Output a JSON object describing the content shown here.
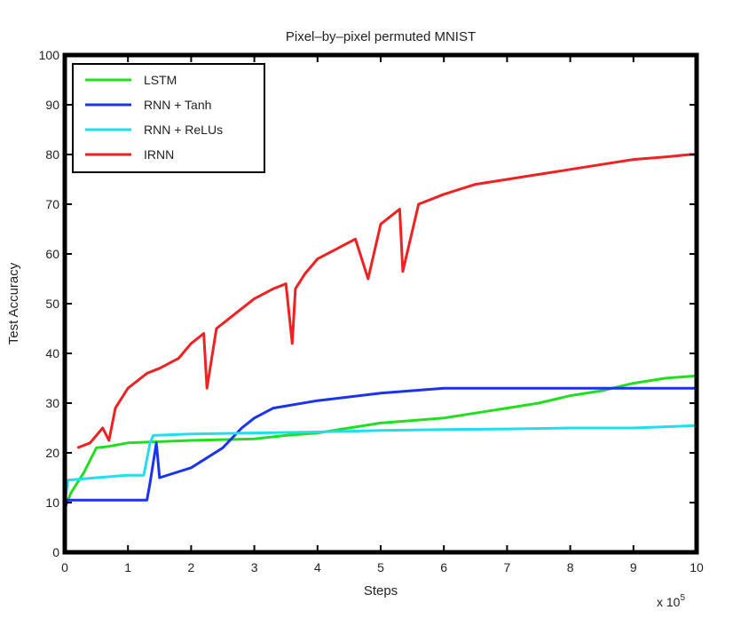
{
  "chart_data": {
    "type": "line",
    "title": "Pixel–by–pixel permuted MNIST",
    "xlabel": "Steps",
    "ylabel": "Test Accuracy",
    "x_multiplier": "x 10",
    "x_multiplier_exp": "5",
    "xlim": [
      0,
      10
    ],
    "ylim": [
      0,
      100
    ],
    "xticks": [
      "0",
      "1",
      "2",
      "3",
      "4",
      "5",
      "6",
      "7",
      "8",
      "9",
      "10"
    ],
    "yticks": [
      "0",
      "10",
      "20",
      "30",
      "40",
      "50",
      "60",
      "70",
      "80",
      "90",
      "100"
    ],
    "grid": false,
    "legend_position": "top-left",
    "series": [
      {
        "name": "LSTM",
        "color": "#22dd22",
        "x": [
          0,
          0.1,
          0.3,
          0.5,
          0.7,
          1,
          2,
          3,
          3.5,
          4,
          4.5,
          5,
          5.5,
          6,
          6.5,
          7,
          7.5,
          8,
          8.5,
          9,
          9.5,
          10
        ],
        "y": [
          9,
          12,
          16,
          21,
          21.3,
          22,
          22.5,
          22.8,
          23.5,
          24,
          25,
          26,
          26.5,
          27,
          28,
          29,
          30,
          31.5,
          32.5,
          34,
          35,
          35.5
        ]
      },
      {
        "name": "RNN + Tanh",
        "color": "#1a33ee",
        "x": [
          0,
          0.05,
          1.3,
          1.35,
          1.45,
          1.5,
          2,
          2.5,
          2.8,
          3,
          3.3,
          4,
          5,
          6,
          7,
          8,
          9,
          10
        ],
        "y": [
          9,
          10.5,
          10.5,
          14,
          22,
          15,
          17,
          21,
          25,
          27,
          29,
          30.5,
          32,
          33,
          33,
          33,
          33,
          33
        ]
      },
      {
        "name": "RNN + ReLUs",
        "color": "#22ddee",
        "x": [
          0,
          0.05,
          0.5,
          1,
          1.25,
          1.35,
          1.4,
          2,
          3,
          4,
          5,
          6,
          7,
          8,
          9,
          10
        ],
        "y": [
          10,
          14.5,
          15,
          15.5,
          15.5,
          22,
          23.5,
          23.8,
          24,
          24.2,
          24.5,
          24.7,
          24.8,
          25,
          25,
          25.5
        ]
      },
      {
        "name": "IRNN",
        "color": "#ee2222",
        "x": [
          0.2,
          0.4,
          0.6,
          0.7,
          0.8,
          1,
          1.3,
          1.5,
          1.8,
          2.0,
          2.2,
          2.25,
          2.4,
          2.7,
          3,
          3.3,
          3.5,
          3.6,
          3.65,
          3.8,
          4,
          4.3,
          4.6,
          4.8,
          5,
          5.3,
          5.35,
          5.6,
          6,
          6.5,
          7,
          7.5,
          8,
          8.5,
          9,
          9.5,
          9.9,
          10
        ],
        "y": [
          21,
          22,
          25,
          22.5,
          29,
          33,
          36,
          37,
          39,
          42,
          44,
          33,
          45,
          48,
          51,
          53,
          54,
          42,
          53,
          56,
          59,
          61,
          63,
          55,
          66,
          69,
          56.5,
          70,
          72,
          74,
          75,
          76,
          77,
          78,
          79,
          79.5,
          80,
          80
        ]
      }
    ]
  }
}
